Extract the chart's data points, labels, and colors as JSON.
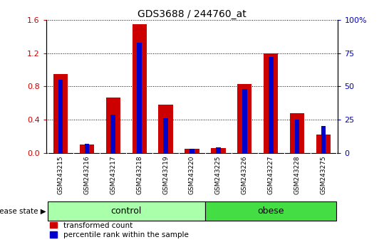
{
  "title": "GDS3688 / 244760_at",
  "samples": [
    "GSM243215",
    "GSM243216",
    "GSM243217",
    "GSM243218",
    "GSM243219",
    "GSM243220",
    "GSM243225",
    "GSM243226",
    "GSM243227",
    "GSM243228",
    "GSM243275"
  ],
  "transformed_count": [
    0.95,
    0.1,
    0.67,
    1.55,
    0.58,
    0.05,
    0.06,
    0.83,
    1.2,
    0.48,
    0.22
  ],
  "percentile_rank": [
    55,
    7,
    29,
    83,
    26,
    3,
    4,
    48,
    72,
    25,
    20
  ],
  "groups": [
    {
      "label": "control",
      "start": 0,
      "end": 6,
      "color": "#aaffaa"
    },
    {
      "label": "obese",
      "start": 6,
      "end": 11,
      "color": "#44dd44"
    }
  ],
  "bar_color_red": "#cc0000",
  "bar_color_blue": "#0000cc",
  "ylim_left": [
    0,
    1.6
  ],
  "ylim_right": [
    0,
    100
  ],
  "yticks_left": [
    0,
    0.4,
    0.8,
    1.2,
    1.6
  ],
  "yticks_right": [
    0,
    25,
    50,
    75,
    100
  ],
  "legend_red_label": "transformed count",
  "legend_blue_label": "percentile rank within the sample",
  "disease_state_label": "disease state",
  "tick_bg_color": "#cccccc",
  "plot_bg_color": "#ffffff",
  "red_bar_width": 0.55,
  "blue_bar_width": 0.18
}
